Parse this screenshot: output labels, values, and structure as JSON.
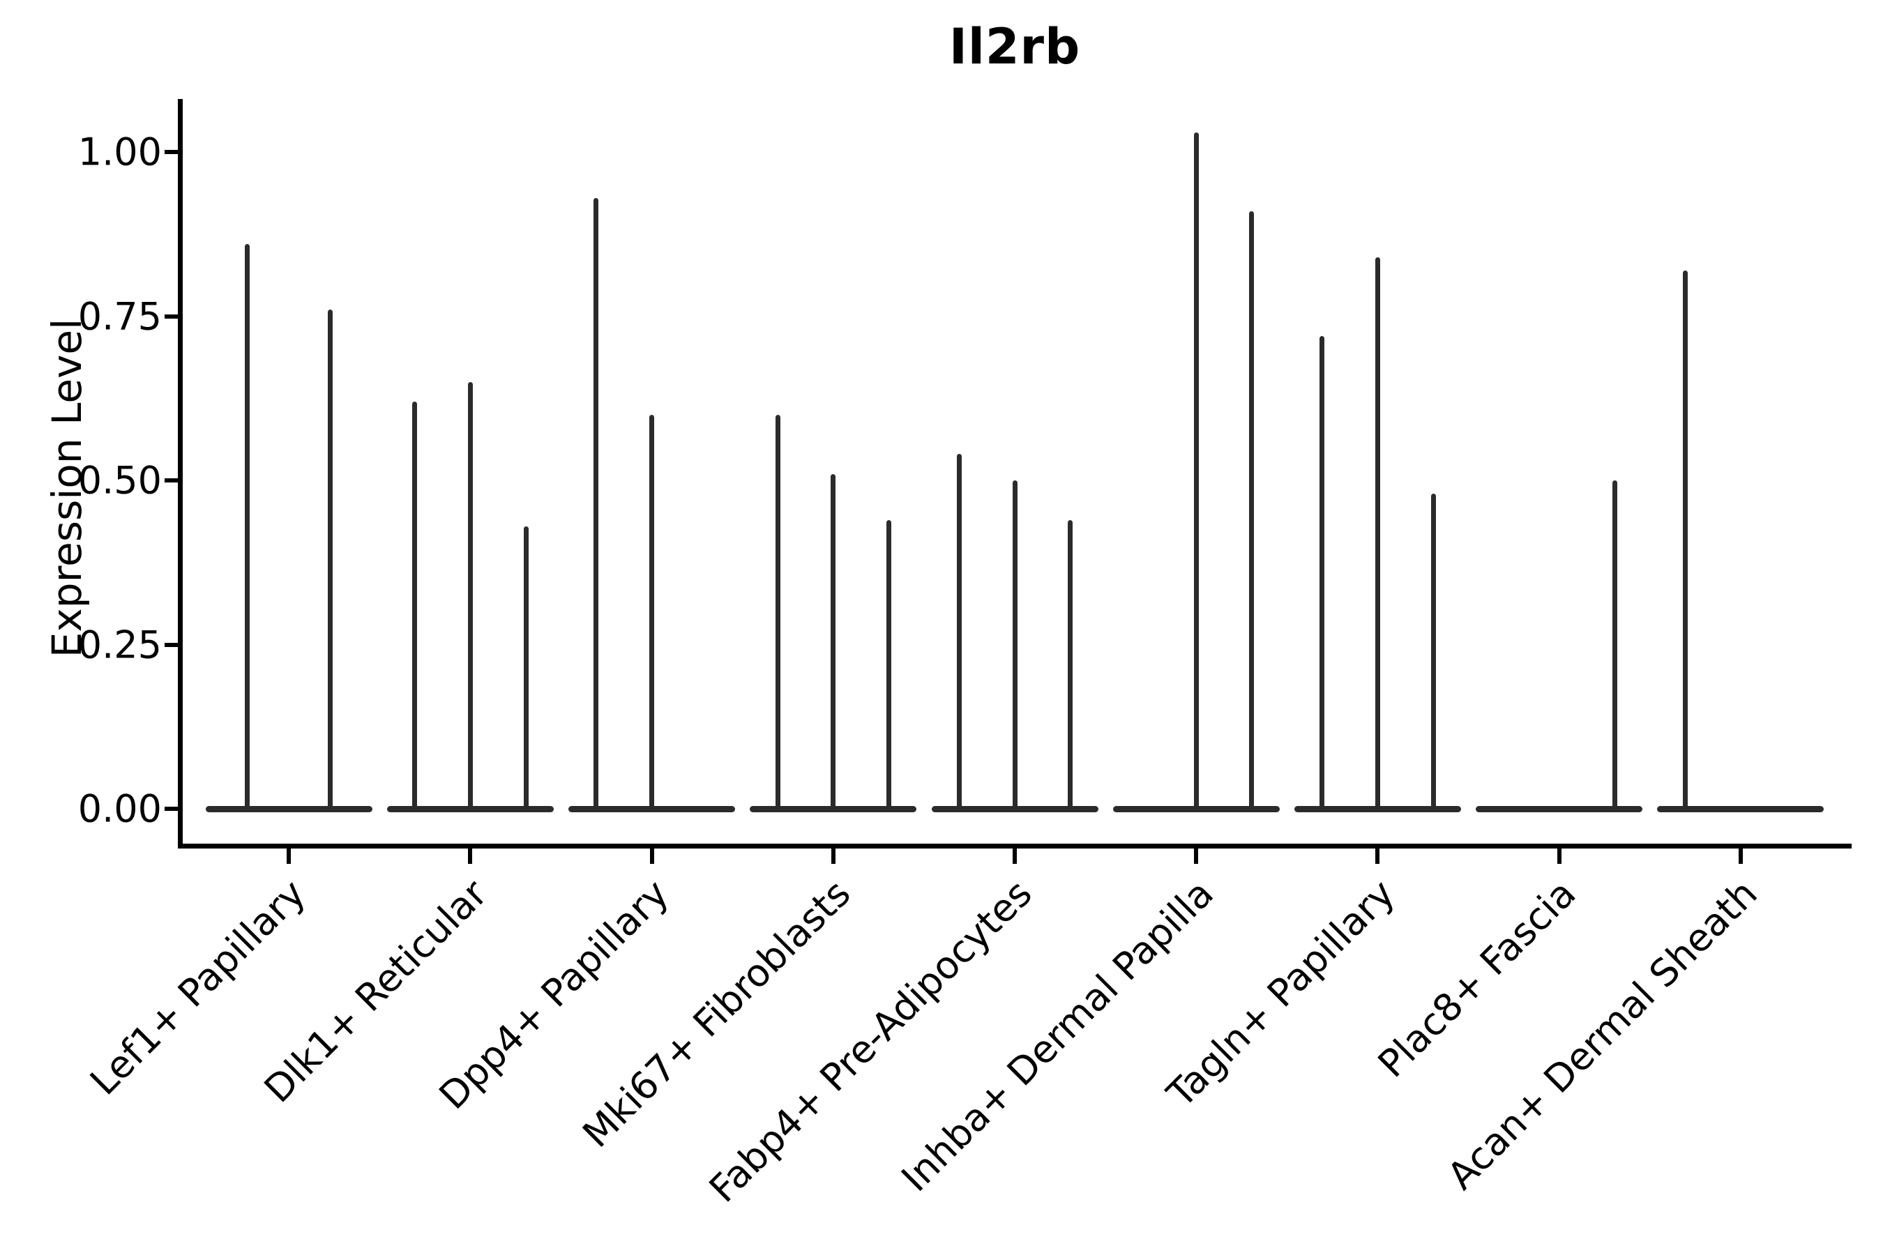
{
  "title": "Il2rb",
  "y_axis": {
    "label": "Expression Level",
    "tick_labels": [
      "0.00",
      "0.25",
      "0.50",
      "0.75",
      "1.00"
    ],
    "tick_values": [
      0,
      0.25,
      0.5,
      0.75,
      1.0
    ]
  },
  "colors": {
    "violin": "#2b2b2b",
    "axis": "#000000",
    "background": "#ffffff"
  },
  "chart_data": {
    "type": "violin",
    "title": "Il2rb",
    "xlabel": "",
    "ylabel": "Expression Level",
    "ylim": [
      0,
      1.08
    ],
    "yticks": [
      0,
      0.25,
      0.5,
      0.75,
      1.0
    ],
    "grid": false,
    "legend": false,
    "description": "Collapsed violin plot (spike-style): each category holds 2-3 thin violins; flat body at 0 with a thin tail rising to the max expression value. Value 0 means a flat violin with no spike.",
    "categories": [
      "Lef1+ Papillary",
      "Dlk1+ Reticular",
      "Dpp4+ Papillary",
      "Mki67+ Fibroblasts",
      "Fabp4+ Pre-Adipocytes",
      "Inhba+ Dermal Papilla",
      "Tagln+ Papillary",
      "Plac8+ Fascia",
      "Acan+ Dermal Sheath"
    ],
    "groups": [
      {
        "category": "Lef1+ Papillary",
        "violin_max_values": [
          0.86,
          0.76
        ]
      },
      {
        "category": "Dlk1+ Reticular",
        "violin_max_values": [
          0.62,
          0.65,
          0.43
        ]
      },
      {
        "category": "Dpp4+ Papillary",
        "violin_max_values": [
          0.93,
          0.6,
          0
        ]
      },
      {
        "category": "Mki67+ Fibroblasts",
        "violin_max_values": [
          0.6,
          0.51,
          0.44
        ]
      },
      {
        "category": "Fabp4+ Pre-Adipocytes",
        "violin_max_values": [
          0.54,
          0.5,
          0.44
        ]
      },
      {
        "category": "Inhba+ Dermal Papilla",
        "violin_max_values": [
          0,
          1.03,
          0.91
        ]
      },
      {
        "category": "Tagln+ Papillary",
        "violin_max_values": [
          0.72,
          0.84,
          0.48
        ]
      },
      {
        "category": "Plac8+ Fascia",
        "violin_max_values": [
          0,
          0,
          0.5
        ]
      },
      {
        "category": "Acan+ Dermal Sheath",
        "violin_max_values": [
          0.82,
          0,
          0
        ]
      }
    ]
  }
}
